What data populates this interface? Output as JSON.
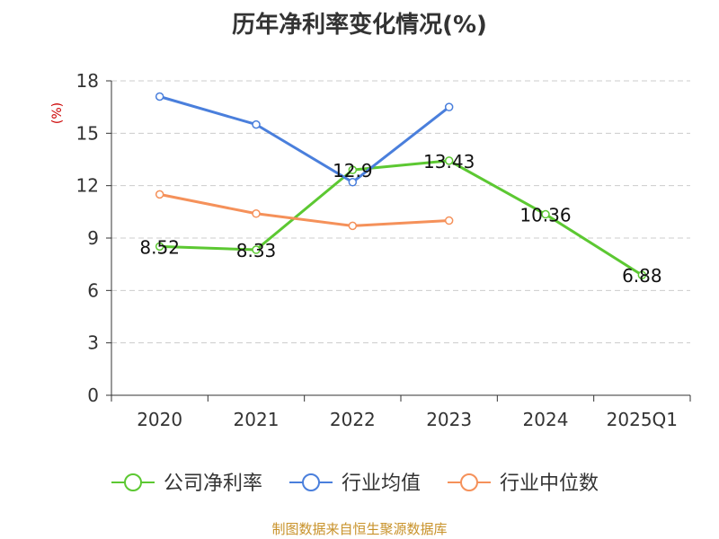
{
  "chart_data": {
    "type": "line",
    "title": "历年净利率变化情况(%)",
    "ylabel": "(%)",
    "categories": [
      "2020",
      "2021",
      "2022",
      "2023",
      "2024",
      "2025Q1"
    ],
    "ylim": [
      0,
      18
    ],
    "yticks": [
      0,
      3,
      6,
      9,
      12,
      15,
      18
    ],
    "grid": true,
    "legend_position": "bottom",
    "series": [
      {
        "name": "公司净利率",
        "color": "#5cc832",
        "values": [
          8.52,
          8.33,
          12.9,
          13.43,
          10.36,
          6.88
        ],
        "labels": [
          "8.52",
          "8.33",
          "12.9",
          "13.43",
          "10.36",
          "6.88"
        ]
      },
      {
        "name": "行业均值",
        "color": "#4a7fdc",
        "values": [
          17.1,
          15.5,
          12.2,
          16.5,
          null,
          null
        ]
      },
      {
        "name": "行业中位数",
        "color": "#f5915a",
        "values": [
          11.5,
          10.4,
          9.7,
          10.0,
          null,
          null
        ]
      }
    ]
  },
  "source": "制图数据来自恒生聚源数据库"
}
